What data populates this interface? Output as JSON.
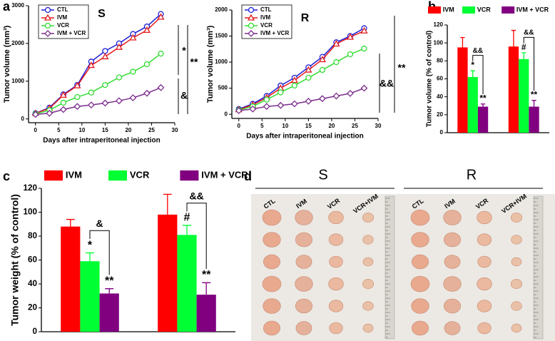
{
  "panel_labels": [
    "a",
    "b",
    "c",
    "d"
  ],
  "chart_data": [
    {
      "type": "line",
      "title": "S",
      "x_label": "Days after intraperitoneal injection",
      "y_label": "Tumor volume (mm³)",
      "x": [
        0,
        3,
        6,
        9,
        12,
        15,
        18,
        21,
        24,
        27
      ],
      "series": [
        {
          "name": "CTL",
          "color": "#1f1fd6",
          "values": [
            150,
            300,
            650,
            900,
            1520,
            1800,
            2000,
            2250,
            2450,
            2780
          ]
        },
        {
          "name": "IVM",
          "color": "#e41a1c",
          "values": [
            150,
            280,
            630,
            880,
            1420,
            1650,
            1900,
            2150,
            2350,
            2700
          ]
        },
        {
          "name": "VCR",
          "color": "#33dd33",
          "values": [
            130,
            230,
            430,
            580,
            700,
            900,
            1100,
            1250,
            1450,
            1730
          ]
        },
        {
          "name": "IVM + VCR",
          "color": "#7b2f8e",
          "values": [
            120,
            150,
            250,
            330,
            370,
            420,
            480,
            560,
            680,
            830
          ]
        }
      ],
      "xlim": [
        -1.5,
        30
      ],
      "xticks": [
        0,
        5,
        10,
        15,
        20,
        25,
        30
      ],
      "ylim": [
        -100,
        3000
      ],
      "yticks": [
        0,
        1000,
        2000,
        3000
      ],
      "annotations": [
        "*",
        "**",
        "&"
      ]
    },
    {
      "type": "line",
      "title": "R",
      "x_label": "Days after intraperitoneal injection",
      "y_label": "Tumor volume (mm³)",
      "x": [
        0,
        3,
        6,
        9,
        12,
        15,
        18,
        21,
        24,
        27
      ],
      "series": [
        {
          "name": "CTL",
          "color": "#1f1fd6",
          "values": [
            100,
            200,
            350,
            550,
            700,
            900,
            1100,
            1380,
            1500,
            1650
          ]
        },
        {
          "name": "IVM",
          "color": "#e41a1c",
          "values": [
            90,
            180,
            320,
            500,
            650,
            850,
            1050,
            1350,
            1480,
            1600
          ]
        },
        {
          "name": "VCR",
          "color": "#33dd33",
          "values": [
            80,
            150,
            280,
            420,
            550,
            700,
            850,
            1000,
            1150,
            1260
          ]
        },
        {
          "name": "IVM + VCR",
          "color": "#7b2f8e",
          "values": [
            70,
            100,
            150,
            170,
            200,
            250,
            300,
            350,
            400,
            500
          ]
        }
      ],
      "xlim": [
        -1.5,
        30
      ],
      "xticks": [
        0,
        5,
        10,
        15,
        20,
        25,
        30
      ],
      "ylim": [
        -80,
        2000
      ],
      "yticks": [
        0,
        500,
        1000,
        1500,
        2000
      ],
      "annotations": [
        "&&",
        "**"
      ]
    },
    {
      "type": "bar",
      "y_label": "Tumor volume (% of control)",
      "categories": [
        null,
        null
      ],
      "series": [
        {
          "name": "IVM",
          "color": "#ff0000",
          "values": [
            95,
            96
          ],
          "errors": [
            11,
            18
          ]
        },
        {
          "name": "VCR",
          "color": "#00ff33",
          "values": [
            62,
            82
          ],
          "errors": [
            7,
            7
          ],
          "marks": [
            "*",
            "#"
          ]
        },
        {
          "name": "IVM + VCR",
          "color": "#800080",
          "values": [
            29,
            29
          ],
          "errors": [
            3,
            7
          ],
          "marks": [
            "**",
            "**"
          ]
        }
      ],
      "ylim": [
        0,
        120
      ],
      "yticks": [
        0,
        20,
        40,
        60,
        80,
        100,
        120
      ],
      "annotations": [
        "&&",
        "&&"
      ]
    },
    {
      "type": "bar",
      "y_label": "Tumor weight (% of control)",
      "categories": [
        null,
        null
      ],
      "series": [
        {
          "name": "IVM",
          "color": "#ff0000",
          "values": [
            88,
            98
          ],
          "errors": [
            6,
            17
          ]
        },
        {
          "name": "VCR",
          "color": "#00ff33",
          "values": [
            59,
            81
          ],
          "errors": [
            7,
            8
          ],
          "marks": [
            "*",
            "#"
          ]
        },
        {
          "name": "IVM + VCR",
          "color": "#800080",
          "values": [
            32,
            31
          ],
          "errors": [
            4,
            10
          ],
          "marks": [
            "**",
            "**"
          ]
        }
      ],
      "ylim": [
        0,
        120
      ],
      "yticks": [
        0,
        20,
        40,
        60,
        80,
        100,
        120
      ],
      "annotations": [
        "&",
        "&&"
      ]
    }
  ],
  "photo": {
    "groups": [
      "S",
      "R"
    ],
    "columns": [
      "CTL",
      "IVM",
      "VCR",
      "VCR+IVM"
    ]
  }
}
